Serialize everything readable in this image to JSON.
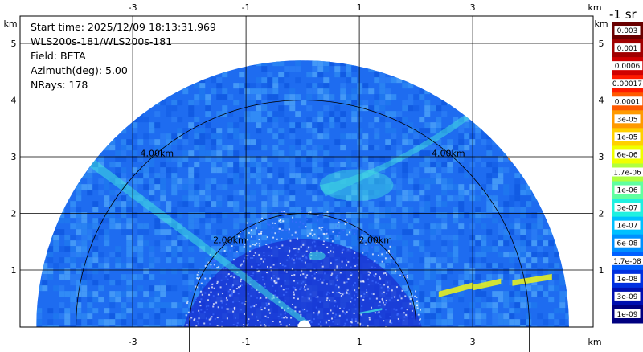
{
  "info": {
    "start_time": "Start time: 2025/12/09 18:13:31.969",
    "instrument": "WLS200s-181/WLS200s-181",
    "field": "Field: BETA",
    "azimuth": "Azimuth(deg): 5.00",
    "nrays": "NRays: 178"
  },
  "axes": {
    "unit": "km",
    "x_ticks": [
      "-3",
      "-1",
      "1",
      "3"
    ],
    "x_tick_values": [
      -3,
      -1,
      1,
      3
    ],
    "y_ticks": [
      "1",
      "2",
      "3",
      "4",
      "5"
    ],
    "y_tick_values": [
      1,
      2,
      3,
      4,
      5
    ]
  },
  "range_rings": [
    {
      "label": "2.00km",
      "km": 2
    },
    {
      "label": "4.00km",
      "km": 4
    }
  ],
  "colorbar": {
    "units_label": "-1 sr",
    "labels": [
      "0.003",
      "0.001",
      "0.0006",
      "0.00017",
      "0.0001",
      "3e-05",
      "1e-05",
      "6e-06",
      "1.7e-06",
      "1e-06",
      "3e-07",
      "1e-07",
      "6e-08",
      "1.7e-08",
      "1e-08",
      "3e-09",
      "1e-09"
    ],
    "colors": [
      "#6a0000",
      "#a00000",
      "#d00000",
      "#ff1a00",
      "#ff5a00",
      "#ff9a00",
      "#ffd000",
      "#f0ff00",
      "#b0ff40",
      "#60ffa0",
      "#20f0e0",
      "#00c0ff",
      "#0090ff",
      "#0060ff",
      "#0030e0",
      "#0010b0",
      "#000080"
    ]
  },
  "colors": {
    "sky_blue": "#1e6cf0",
    "cyan": "#40e0e0",
    "deep_blue": "#1a2fd0"
  }
}
